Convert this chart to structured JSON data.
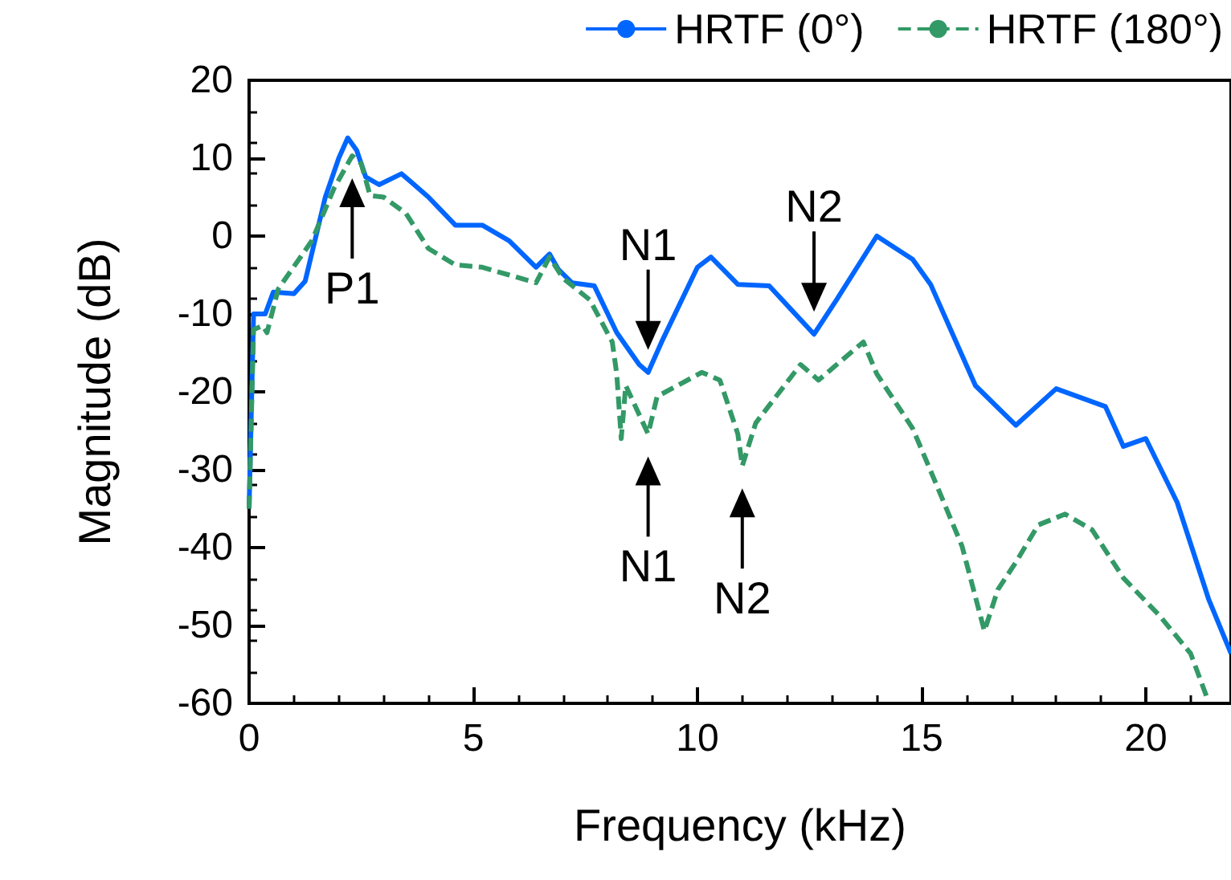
{
  "chart_data": {
    "type": "line",
    "xlabel": "Frequency (kHz)",
    "ylabel": "Magnitude (dB)",
    "xlim": [
      0,
      21.9
    ],
    "xticks": [
      0,
      5,
      10,
      15,
      20
    ],
    "ylim": [
      -60,
      20
    ],
    "yticks": [
      -60,
      -50,
      -40,
      -30,
      -20,
      -10,
      0,
      10,
      20
    ],
    "grid": false,
    "legend": "top right",
    "marker": "none",
    "series": [
      {
        "name": "HRTF (0°)",
        "color": "#0066ff",
        "line_style": "solid",
        "x": [
          0,
          0.1,
          0.36,
          0.54,
          1.0,
          1.25,
          1.7,
          2.0,
          2.2,
          2.4,
          2.6,
          2.9,
          3.4,
          4.0,
          4.6,
          5.2,
          5.8,
          6.4,
          6.7,
          6.9,
          7.2,
          7.7,
          8.2,
          8.7,
          8.9,
          9.2,
          10.0,
          10.3,
          10.9,
          11.6,
          12.1,
          12.6,
          13.1,
          14.0,
          14.8,
          15.2,
          16.2,
          17.1,
          18.0,
          19.1,
          19.5,
          20.0,
          20.7,
          21.4,
          21.9
        ],
        "values": [
          -35,
          -10,
          -10,
          -7.2,
          -7.4,
          -5.8,
          5,
          10,
          12.6,
          11,
          7.6,
          6.6,
          8,
          5,
          1.4,
          1.4,
          -0.6,
          -4,
          -2.3,
          -4.3,
          -6,
          -6.4,
          -12.4,
          -16.5,
          -17.5,
          -13.6,
          -4,
          -2.7,
          -6.2,
          -6.4,
          -9.5,
          -12.6,
          -8.2,
          0,
          -3,
          -6.2,
          -19.2,
          -24.3,
          -19.6,
          -21.9,
          -27,
          -26,
          -34.2,
          -46.6,
          -53.6
        ]
      },
      {
        "name": "HRTF (180°)",
        "color": "#339966",
        "line_style": "dashed",
        "x": [
          0,
          0.1,
          0.3,
          0.4,
          0.65,
          1.4,
          1.9,
          2.3,
          2.5,
          2.7,
          3.0,
          3.5,
          4.0,
          4.6,
          5.2,
          5.8,
          6.4,
          6.7,
          7.0,
          7.6,
          8.1,
          8.2,
          8.3,
          8.4,
          8.9,
          9.1,
          10.1,
          10.5,
          10.9,
          11.0,
          11.3,
          12.3,
          12.7,
          13.7,
          14.0,
          14.8,
          15.3,
          15.9,
          16.4,
          16.7,
          17.1,
          17.6,
          18.2,
          18.8,
          19.5,
          20.3,
          21.0,
          21.4
        ],
        "values": [
          -35,
          -12,
          -11.5,
          -12.4,
          -6.8,
          -0.6,
          6.2,
          10.3,
          9.3,
          5.2,
          5,
          2.9,
          -1.6,
          -3.7,
          -4,
          -5,
          -6,
          -2.7,
          -5.4,
          -8.2,
          -13.6,
          -17.7,
          -26,
          -19.2,
          -25.4,
          -20.6,
          -17.5,
          -18.5,
          -25.4,
          -29.5,
          -24,
          -16.5,
          -18.5,
          -13.6,
          -17.7,
          -24.7,
          -31.5,
          -39.8,
          -50.7,
          -45.4,
          -41.9,
          -37.1,
          -35.7,
          -37.7,
          -43.9,
          -48.7,
          -53.6,
          -59.8
        ]
      }
    ],
    "annotations": [
      {
        "text": "P1",
        "x": 2.3,
        "y": 10.3
      },
      {
        "text": "N1",
        "x": 8.9,
        "y": -17.5
      },
      {
        "text": "N2",
        "x": 12.6,
        "y": -12.6
      },
      {
        "text": "N1",
        "x": 8.9,
        "y": -25.4
      },
      {
        "text": "N2",
        "x": 11.0,
        "y": -29.5
      }
    ]
  }
}
